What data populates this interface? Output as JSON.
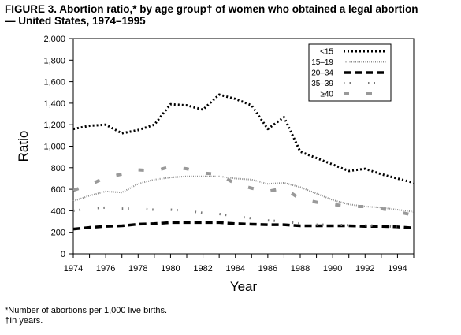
{
  "figure": {
    "title_line1": "FIGURE 3. Abortion ratio,* by age group† of women who obtained a legal abortion",
    "title_line2": "— United States, 1974–1995",
    "footnote1": "*Number of abortions per 1,000 live births.",
    "footnote2": "†In years."
  },
  "chart_data": {
    "type": "line",
    "title": "FIGURE 3. Abortion ratio,* by age group† of women who obtained a legal abortion — United States, 1974–1995",
    "xlabel": "Year",
    "ylabel": "Ratio",
    "xlim": [
      1974,
      1995
    ],
    "ylim": [
      0,
      2000
    ],
    "xticks": [
      1974,
      1976,
      1978,
      1980,
      1982,
      1984,
      1986,
      1988,
      1990,
      1992,
      1994
    ],
    "xtick_labels": [
      "1974",
      "1976",
      "1978",
      "1980",
      "1982",
      "1984",
      "1986",
      "1988",
      "1990",
      "1992",
      "1994"
    ],
    "yticks": [
      0,
      200,
      400,
      600,
      800,
      1000,
      1200,
      1400,
      1600,
      1800,
      2000
    ],
    "ytick_labels": [
      "0",
      "200",
      "400",
      "600",
      "800",
      "1,000",
      "1,200",
      "1,400",
      "1,600",
      "1,800",
      "2,000"
    ],
    "grid": false,
    "legend_position": "top-right",
    "x": [
      1974,
      1975,
      1976,
      1977,
      1978,
      1979,
      1980,
      1981,
      1982,
      1983,
      1984,
      1985,
      1986,
      1987,
      1988,
      1989,
      1990,
      1991,
      1992,
      1993,
      1994,
      1995
    ],
    "series": [
      {
        "name": "<15",
        "style": "dotted-heavy",
        "values": [
          1160,
          1190,
          1200,
          1120,
          1150,
          1200,
          1390,
          1380,
          1340,
          1480,
          1440,
          1380,
          1160,
          1270,
          950,
          890,
          830,
          770,
          790,
          740,
          700,
          660
        ]
      },
      {
        "name": "15–19",
        "style": "wavy",
        "values": [
          490,
          540,
          580,
          570,
          650,
          690,
          710,
          720,
          720,
          720,
          700,
          690,
          650,
          660,
          620,
          560,
          500,
          460,
          440,
          430,
          410,
          390
        ]
      },
      {
        "name": "20–34",
        "style": "dashed-heavy",
        "values": [
          230,
          245,
          255,
          260,
          275,
          280,
          290,
          290,
          290,
          290,
          280,
          275,
          270,
          270,
          260,
          260,
          260,
          260,
          255,
          255,
          250,
          240
        ]
      },
      {
        "name": "35–39",
        "style": "sparse-dots",
        "values": [
          400,
          420,
          430,
          420,
          420,
          410,
          410,
          400,
          380,
          370,
          350,
          330,
          310,
          300,
          280,
          270,
          270,
          265,
          265,
          260,
          250,
          240
        ]
      },
      {
        "name": "≥40",
        "style": "sparse-blocks",
        "values": [
          590,
          640,
          710,
          740,
          780,
          770,
          810,
          790,
          750,
          740,
          650,
          610,
          580,
          610,
          510,
          480,
          460,
          440,
          440,
          420,
          390,
          360
        ]
      }
    ]
  }
}
